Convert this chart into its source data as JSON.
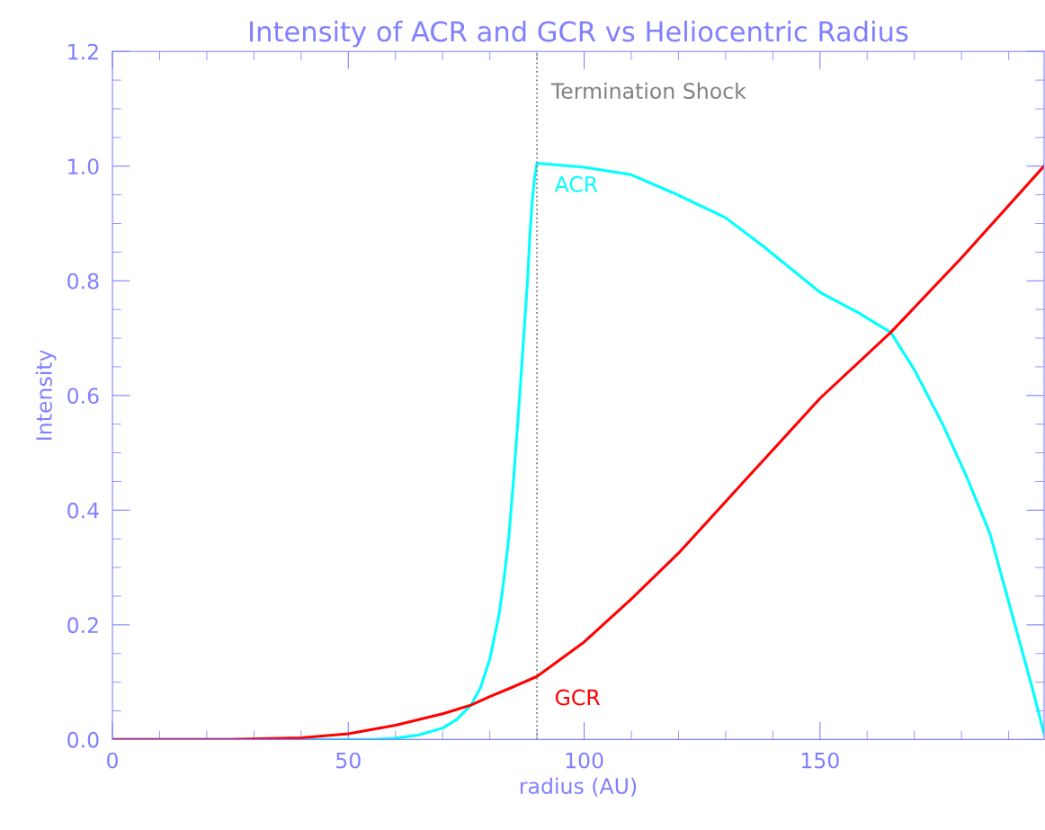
{
  "chart_data": {
    "type": "line",
    "title": "Intensity of ACR and GCR vs Heliocentric Radius",
    "xlabel": "radius (AU)",
    "ylabel": "Intensity",
    "series": [
      {
        "color": "#00ffff",
        "x": [
          0,
          40,
          55,
          60,
          65,
          70,
          73,
          76,
          78,
          80,
          82,
          83,
          84,
          85,
          86,
          87,
          88,
          88.5,
          89,
          89.5,
          90,
          100,
          110,
          119,
          130,
          138,
          150,
          158,
          165,
          170,
          176,
          181,
          186,
          191,
          195,
          197.5
        ],
        "values": [
          0,
          0,
          0,
          0.002,
          0.008,
          0.02,
          0.035,
          0.06,
          0.09,
          0.14,
          0.22,
          0.28,
          0.35,
          0.45,
          0.56,
          0.68,
          0.8,
          0.88,
          0.94,
          0.98,
          1.005,
          0.998,
          0.985,
          0.953,
          0.91,
          0.86,
          0.78,
          0.745,
          0.71,
          0.645,
          0.55,
          0.46,
          0.36,
          0.21,
          0.09,
          0.01
        ]
      },
      {
        "color": "#ff0000",
        "x": [
          0,
          25,
          40,
          50,
          60,
          70,
          76,
          80,
          85,
          90,
          100,
          110,
          120,
          135,
          150,
          165,
          180,
          197.5
        ],
        "values": [
          0,
          0,
          0.003,
          0.01,
          0.025,
          0.045,
          0.06,
          0.075,
          0.092,
          0.11,
          0.17,
          0.245,
          0.325,
          0.46,
          0.595,
          0.71,
          0.84,
          1.0
        ]
      }
    ],
    "xlim": [
      0,
      197.5
    ],
    "ylim": [
      0,
      1.2
    ],
    "xticks": [
      0,
      50,
      100,
      150
    ],
    "yticks": [
      {
        "value": 0,
        "label": "0.0"
      },
      0.2,
      0.4,
      0.6,
      0.8,
      {
        "value": 1.0,
        "label": "1.0"
      },
      1.2
    ],
    "ref_lines": [
      {
        "axis": "x",
        "value": 90,
        "label": "Termination Shock",
        "color": "#808080",
        "line_style": "dotted"
      }
    ],
    "annotations": [
      {
        "text": "ACR",
        "x": 90,
        "y": 1.005
      },
      {
        "text": "GCR",
        "x": 90,
        "y": 0.11
      }
    ],
    "grid": false,
    "legend": false
  }
}
